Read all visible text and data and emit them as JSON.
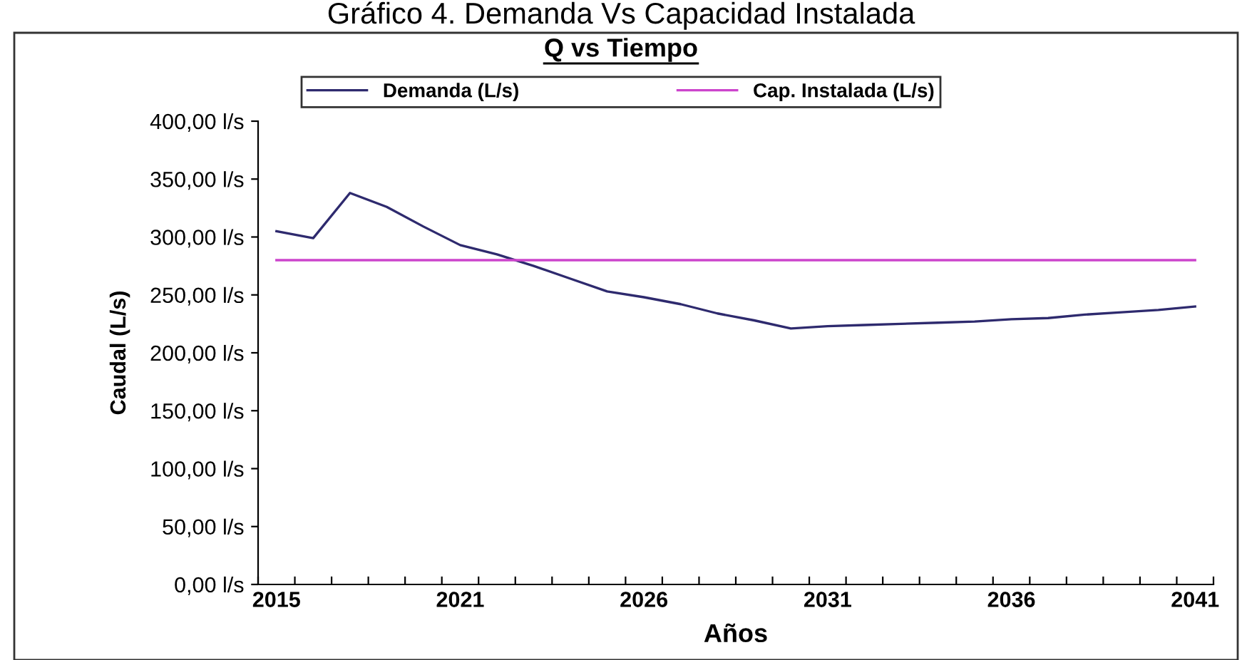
{
  "chart_data": {
    "type": "line",
    "title": "Gráfico 4. Demanda Vs Capacidad Instalada",
    "subtitle": "Q vs Tiempo",
    "xlabel": "Años",
    "ylabel": "Caudal (L/s)",
    "categories": [
      "2015",
      null,
      null,
      null,
      null,
      "2021",
      null,
      null,
      null,
      null,
      "2026",
      null,
      null,
      null,
      null,
      "2031",
      null,
      null,
      null,
      null,
      "2036",
      null,
      null,
      null,
      null,
      "2041"
    ],
    "series": [
      {
        "name": "Demanda (L/s)",
        "color": "#2e2a6e",
        "values": [
          305,
          299,
          338,
          326,
          309,
          293,
          285,
          275,
          264,
          253,
          248,
          242,
          234,
          228,
          221,
          223,
          224,
          225,
          226,
          227,
          229,
          230,
          233,
          235,
          237,
          240
        ]
      },
      {
        "name": "Cap. Instalada (L/s)",
        "color": "#cc44cc",
        "values": [
          280,
          280,
          280,
          280,
          280,
          280,
          280,
          280,
          280,
          280,
          280,
          280,
          280,
          280,
          280,
          280,
          280,
          280,
          280,
          280,
          280,
          280,
          280,
          280,
          280,
          280
        ]
      }
    ],
    "ylim": [
      0,
      400
    ],
    "yticks": [
      {
        "value": 0,
        "label": "0,00 l/s"
      },
      {
        "value": 50,
        "label": "50,00 l/s"
      },
      {
        "value": 100,
        "label": "100,00 l/s"
      },
      {
        "value": 150,
        "label": "150,00 l/s"
      },
      {
        "value": 200,
        "label": "200,00 l/s"
      },
      {
        "value": 250,
        "label": "250,00 l/s"
      },
      {
        "value": 300,
        "label": "300,00 l/s"
      },
      {
        "value": 350,
        "label": "350,00 l/s"
      },
      {
        "value": 400,
        "label": "400,00 l/s"
      }
    ],
    "grid": false,
    "legend": "top",
    "marker": "none",
    "line_style": "solid"
  }
}
